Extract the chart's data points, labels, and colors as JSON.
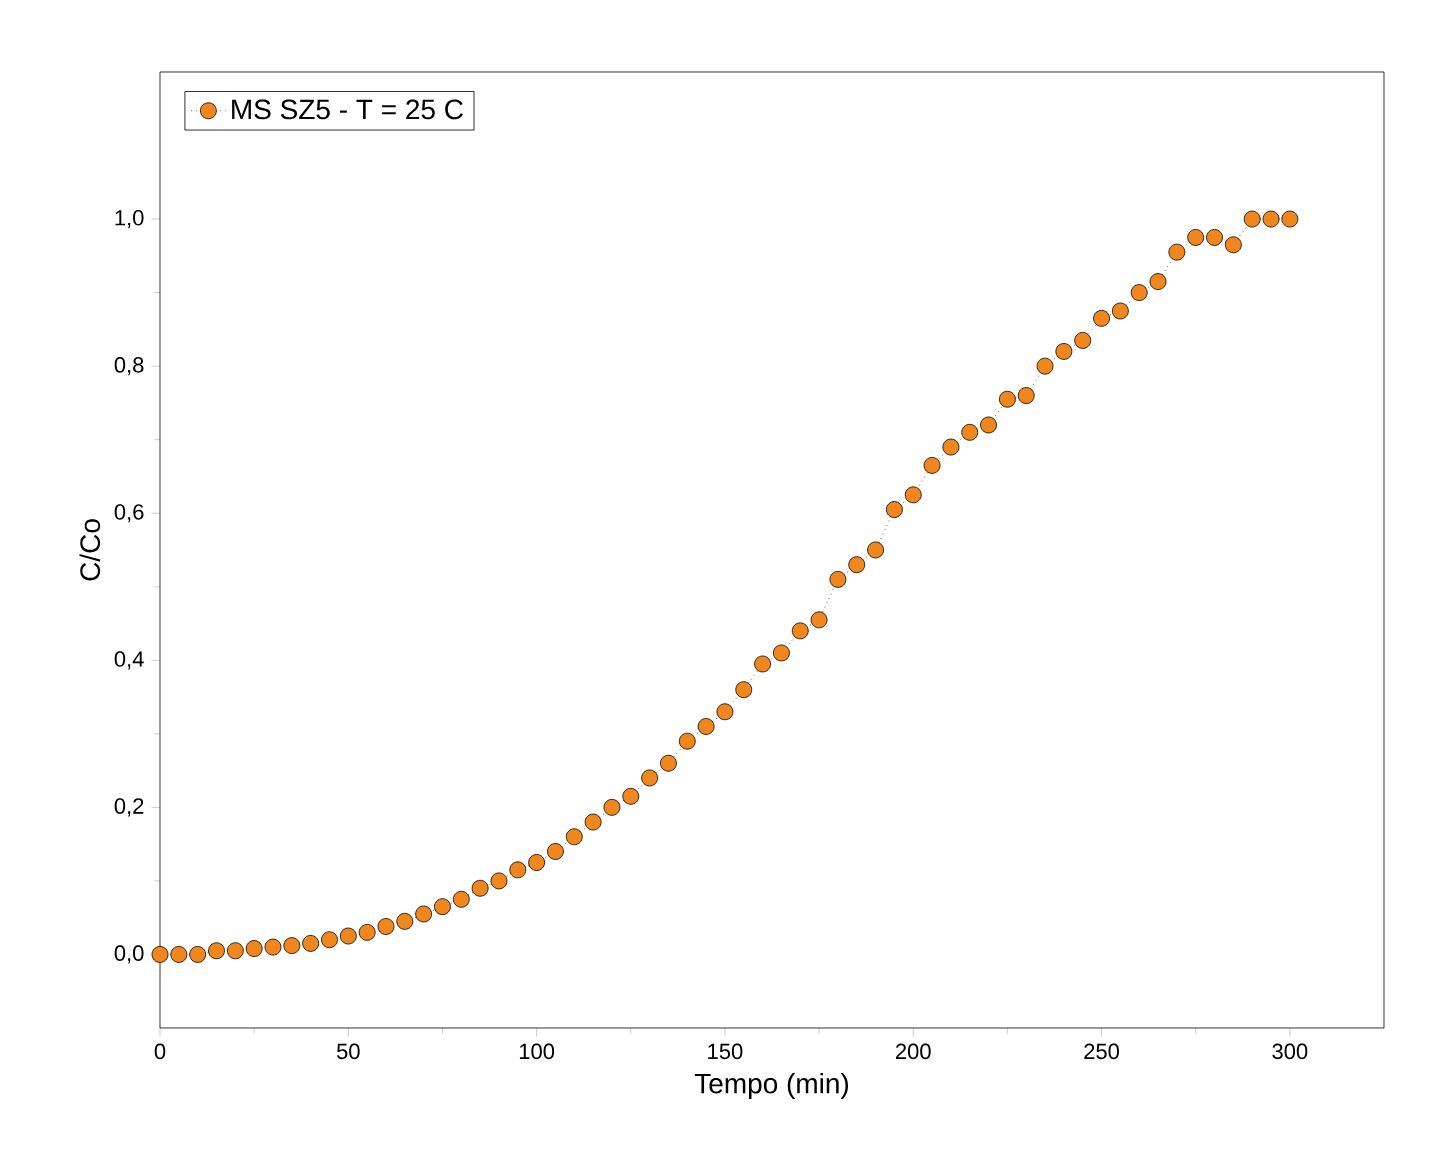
{
  "chart_data": {
    "type": "line",
    "xlabel": "Tempo (min)",
    "ylabel": "C/Co",
    "x": [
      0,
      5,
      10,
      15,
      20,
      25,
      30,
      35,
      40,
      45,
      50,
      55,
      60,
      65,
      70,
      75,
      80,
      85,
      90,
      95,
      100,
      105,
      110,
      115,
      120,
      125,
      130,
      135,
      140,
      145,
      150,
      155,
      160,
      165,
      170,
      175,
      180,
      185,
      190,
      195,
      200,
      205,
      210,
      215,
      220,
      225,
      230,
      235,
      240,
      245,
      250,
      255,
      260,
      265,
      270,
      275,
      280,
      285,
      290,
      295,
      300
    ],
    "series": [
      {
        "name": "MS SZ5 - T = 25 C",
        "color": "#f0861e",
        "values": [
          0.0,
          0.0,
          0.0,
          0.005,
          0.005,
          0.008,
          0.01,
          0.012,
          0.015,
          0.02,
          0.025,
          0.03,
          0.038,
          0.045,
          0.055,
          0.065,
          0.075,
          0.09,
          0.1,
          0.115,
          0.125,
          0.14,
          0.16,
          0.18,
          0.2,
          0.215,
          0.24,
          0.26,
          0.29,
          0.31,
          0.33,
          0.36,
          0.395,
          0.41,
          0.44,
          0.455,
          0.51,
          0.53,
          0.55,
          0.605,
          0.625,
          0.665,
          0.69,
          0.71,
          0.72,
          0.755,
          0.76,
          0.8,
          0.82,
          0.835,
          0.865,
          0.875,
          0.9,
          0.915,
          0.955,
          0.975,
          0.975,
          0.965,
          1.0,
          1.0,
          1.0
        ]
      }
    ],
    "xlim": [
      0,
      325
    ],
    "ylim": [
      -0.1,
      1.2
    ],
    "xticks": [
      0,
      50,
      100,
      150,
      200,
      250,
      300
    ],
    "yticks": [
      {
        "value": 0,
        "label": "0,0"
      },
      {
        "value": 0.2,
        "label": "0,2"
      },
      {
        "value": 0.4,
        "label": "0,4"
      },
      {
        "value": 0.6,
        "label": "0,6"
      },
      {
        "value": 0.8,
        "label": "0,8"
      },
      {
        "value": 1.0,
        "label": "1,0"
      }
    ],
    "legend": "top left",
    "marker": "circle",
    "line_style": "dotted",
    "grid": false
  }
}
